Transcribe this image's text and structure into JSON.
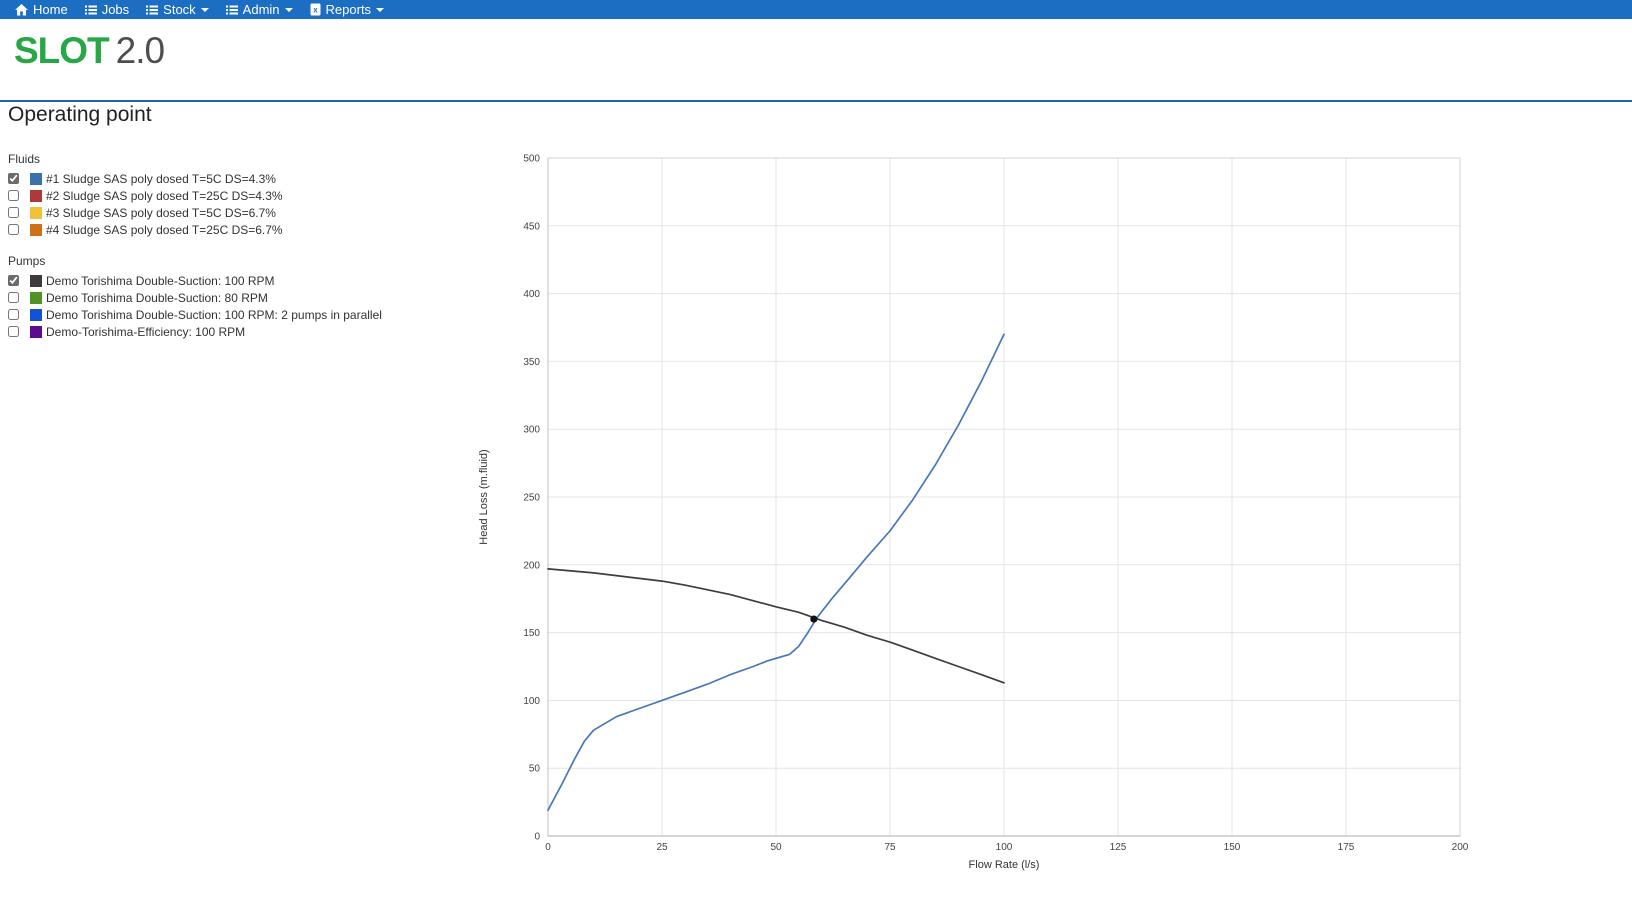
{
  "navbar": {
    "items": [
      {
        "label": "Home",
        "icon": "home-icon",
        "caret": false
      },
      {
        "label": "Jobs",
        "icon": "list-icon",
        "caret": false
      },
      {
        "label": "Stock",
        "icon": "list-icon",
        "caret": true
      },
      {
        "label": "Admin",
        "icon": "list-icon",
        "caret": true
      },
      {
        "label": "Reports",
        "icon": "file-excel-icon",
        "caret": true
      }
    ]
  },
  "brand": {
    "name": "SLOT",
    "version": "2.0",
    "name_color": "#28a745",
    "version_color": "#4d4d4f"
  },
  "page": {
    "title": "Operating point"
  },
  "fluids": {
    "label": "Fluids",
    "items": [
      {
        "checked": true,
        "color": "#3c6fad",
        "label": "#1 Sludge SAS poly dosed T=5C DS=4.3%"
      },
      {
        "checked": false,
        "color": "#ad3a3a",
        "label": "#2 Sludge SAS poly dosed T=25C DS=4.3%"
      },
      {
        "checked": false,
        "color": "#f0c23a",
        "label": "#3 Sludge SAS poly dosed T=5C DS=6.7%"
      },
      {
        "checked": false,
        "color": "#cf7117",
        "label": "#4 Sludge SAS poly dosed T=25C DS=6.7%"
      }
    ]
  },
  "pumps": {
    "label": "Pumps",
    "items": [
      {
        "checked": true,
        "color": "#3f3b3b",
        "label": "Demo Torishima Double-Suction: 100 RPM"
      },
      {
        "checked": false,
        "color": "#4f9327",
        "label": "Demo Torishima Double-Suction: 80 RPM"
      },
      {
        "checked": false,
        "color": "#1253d4",
        "label": "Demo Torishima Double-Suction: 100 RPM: 2 pumps in parallel"
      },
      {
        "checked": false,
        "color": "#5e0c8e",
        "label": "Demo-Torishima-Efficiency: 100 RPM"
      }
    ]
  },
  "chart_data": {
    "type": "line",
    "xlabel": "Flow Rate (l/s)",
    "ylabel": "Head Loss (m.fluid)",
    "xlim": [
      0,
      200
    ],
    "ylim": [
      0,
      500
    ],
    "x_ticks": [
      0,
      25,
      50,
      75,
      100,
      125,
      150,
      175,
      200
    ],
    "y_ticks": [
      0,
      50,
      100,
      150,
      200,
      250,
      300,
      350,
      400,
      450,
      500
    ],
    "grid": true,
    "legend_position": "none",
    "series": [
      {
        "name": "#1 Sludge SAS poly dosed T=5C DS=4.3%",
        "color": "#4678b8",
        "points": [
          [
            0,
            19
          ],
          [
            3,
            38
          ],
          [
            6,
            58
          ],
          [
            8,
            70
          ],
          [
            10,
            78
          ],
          [
            15,
            88
          ],
          [
            20,
            94
          ],
          [
            25,
            100
          ],
          [
            30,
            106
          ],
          [
            35,
            112
          ],
          [
            40,
            119
          ],
          [
            45,
            125
          ],
          [
            48,
            129
          ],
          [
            51,
            132
          ],
          [
            53,
            134
          ],
          [
            55,
            140
          ],
          [
            57,
            150
          ],
          [
            59,
            161
          ],
          [
            62,
            174
          ],
          [
            66,
            190
          ],
          [
            70,
            206
          ],
          [
            75,
            225
          ],
          [
            80,
            248
          ],
          [
            85,
            274
          ],
          [
            90,
            303
          ],
          [
            95,
            335
          ],
          [
            100,
            370
          ]
        ]
      },
      {
        "name": "Demo Torishima Double-Suction: 100 RPM",
        "color": "#3d3d3d",
        "points": [
          [
            0,
            197
          ],
          [
            10,
            194
          ],
          [
            20,
            190
          ],
          [
            25,
            188
          ],
          [
            30,
            185
          ],
          [
            40,
            178
          ],
          [
            50,
            169
          ],
          [
            55,
            165
          ],
          [
            60,
            159
          ],
          [
            65,
            154
          ],
          [
            70,
            148
          ],
          [
            75,
            143
          ],
          [
            80,
            137
          ],
          [
            85,
            131
          ],
          [
            90,
            125
          ],
          [
            95,
            119
          ],
          [
            100,
            113
          ]
        ]
      }
    ],
    "operating_point": {
      "x": 58.3,
      "y": 160,
      "color": "#111111"
    }
  }
}
